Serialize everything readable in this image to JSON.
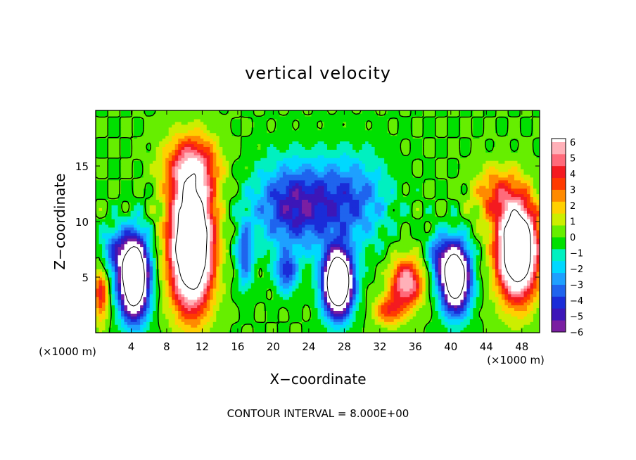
{
  "chart_data": {
    "type": "heatmap",
    "title": "vertical velocity",
    "xlabel": "X−coordinate",
    "ylabel": "Z−coordinate",
    "x_unit_left": "(×1000 m)",
    "x_unit_right": "(×1000 m)",
    "xlim": [
      0,
      50
    ],
    "ylim": [
      0,
      20
    ],
    "x_ticks": [
      4,
      8,
      12,
      16,
      20,
      24,
      28,
      32,
      36,
      40,
      44,
      48
    ],
    "y_ticks": [
      5,
      10,
      15
    ],
    "footer": "CONTOUR INTERVAL = 8.000E+00",
    "colorbar": {
      "min": -6,
      "max": 6,
      "tick_labels": [
        "6",
        "5",
        "4",
        "3",
        "2",
        "1",
        "0",
        "−1",
        "−2",
        "−3",
        "−4",
        "−5",
        "−6"
      ],
      "colors": [
        "#7a1fa2",
        "#3c16b8",
        "#1a2cd8",
        "#1f64ee",
        "#1ea0ff",
        "#00d8ff",
        "#00f0c0",
        "#00e000",
        "#66ee00",
        "#ccee00",
        "#ffd000",
        "#ff8a00",
        "#ff3a00",
        "#f41a20",
        "#ff6a7a",
        "#ffb0b8"
      ]
    },
    "features": [
      {
        "kind": "updraft",
        "x": 10.8,
        "z": 8.0,
        "w": 14,
        "sx": 2.3,
        "sz": 5.5
      },
      {
        "kind": "updraft",
        "x": 10.8,
        "z": 15.0,
        "w": 4.5,
        "sx": 3.0,
        "sz": 2.8
      },
      {
        "kind": "updraft",
        "x": 47.5,
        "z": 7.5,
        "w": 13,
        "sx": 2.2,
        "sz": 4.2
      },
      {
        "kind": "updraft",
        "x": 45.0,
        "z": 12.5,
        "w": 3.0,
        "sx": 2.5,
        "sz": 2.5
      },
      {
        "kind": "updraft",
        "x": 35.0,
        "z": 4.5,
        "w": 6,
        "sx": 1.8,
        "sz": 2.2
      },
      {
        "kind": "updraft",
        "x": 33.0,
        "z": 2.0,
        "w": 3.5,
        "sx": 1.6,
        "sz": 1.3
      },
      {
        "kind": "updraft",
        "x": 0.6,
        "z": 3.5,
        "w": 4.0,
        "sx": 0.8,
        "sz": 2.5
      },
      {
        "kind": "downdraft",
        "x": 4.3,
        "z": 5.0,
        "w": -14,
        "sx": 1.6,
        "sz": 3.5
      },
      {
        "kind": "downdraft",
        "x": 27.3,
        "z": 4.5,
        "w": -14,
        "sx": 1.6,
        "sz": 2.8
      },
      {
        "kind": "downdraft",
        "x": 40.5,
        "z": 5.0,
        "w": -12,
        "sx": 1.6,
        "sz": 3.0
      },
      {
        "kind": "downdraft",
        "x": 22.5,
        "z": 11.5,
        "w": -5,
        "sx": 4.5,
        "sz": 3.8
      },
      {
        "kind": "downdraft",
        "x": 29.0,
        "z": 12.0,
        "w": -3.2,
        "sx": 4.0,
        "sz": 4.0
      },
      {
        "kind": "downdraft",
        "x": 16.8,
        "z": 7.0,
        "w": -3.5,
        "sx": 0.9,
        "sz": 3.0
      },
      {
        "kind": "downdraft",
        "x": 21.5,
        "z": 5.5,
        "w": -4.0,
        "sx": 1.2,
        "sz": 1.8
      },
      {
        "kind": "downdraft",
        "x": 2.0,
        "z": 7.5,
        "w": -3.0,
        "sx": 1.5,
        "sz": 2.0
      },
      {
        "kind": "downdraft",
        "x": 38.5,
        "z": 7.0,
        "w": -3.0,
        "sx": 1.2,
        "sz": 2.0
      }
    ]
  }
}
